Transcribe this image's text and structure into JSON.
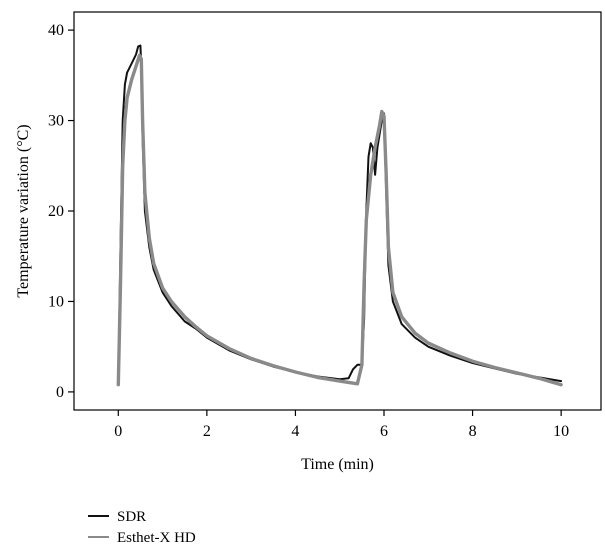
{
  "chart_data": {
    "type": "line",
    "title": "",
    "xlabel": "Time (min)",
    "ylabel": "Temperature variation (°C)",
    "xlim": [
      -1,
      10.9
    ],
    "ylim": [
      -2,
      42
    ],
    "xticks": [
      0,
      2,
      4,
      6,
      8,
      10
    ],
    "yticks": [
      0,
      10,
      20,
      30,
      40
    ],
    "grid": false,
    "legend_position": "bottom-left",
    "series": [
      {
        "name": "SDR",
        "color": "#111111",
        "points": [
          [
            0.0,
            1.0
          ],
          [
            0.05,
            16.0
          ],
          [
            0.1,
            30.0
          ],
          [
            0.15,
            34.0
          ],
          [
            0.2,
            35.3
          ],
          [
            0.3,
            36.3
          ],
          [
            0.4,
            37.3
          ],
          [
            0.45,
            38.2
          ],
          [
            0.5,
            38.3
          ],
          [
            0.52,
            36.0
          ],
          [
            0.55,
            28.0
          ],
          [
            0.6,
            20.0
          ],
          [
            0.7,
            16.0
          ],
          [
            0.8,
            13.5
          ],
          [
            1.0,
            11.0
          ],
          [
            1.2,
            9.5
          ],
          [
            1.5,
            7.8
          ],
          [
            1.75,
            7.0
          ],
          [
            2.0,
            6.0
          ],
          [
            2.5,
            4.6
          ],
          [
            3.0,
            3.6
          ],
          [
            3.5,
            2.8
          ],
          [
            4.0,
            2.2
          ],
          [
            4.5,
            1.7
          ],
          [
            5.0,
            1.4
          ],
          [
            5.2,
            1.5
          ],
          [
            5.3,
            2.5
          ],
          [
            5.4,
            3.0
          ],
          [
            5.5,
            3.0
          ],
          [
            5.55,
            8.0
          ],
          [
            5.6,
            20.0
          ],
          [
            5.65,
            26.0
          ],
          [
            5.7,
            27.5
          ],
          [
            5.75,
            27.0
          ],
          [
            5.8,
            24.0
          ],
          [
            5.85,
            27.0
          ],
          [
            5.95,
            30.0
          ],
          [
            6.0,
            30.8
          ],
          [
            6.05,
            22.0
          ],
          [
            6.1,
            14.0
          ],
          [
            6.2,
            10.0
          ],
          [
            6.4,
            7.5
          ],
          [
            6.7,
            6.0
          ],
          [
            7.0,
            5.0
          ],
          [
            7.5,
            4.0
          ],
          [
            8.0,
            3.2
          ],
          [
            8.5,
            2.6
          ],
          [
            9.0,
            2.0
          ],
          [
            9.5,
            1.6
          ],
          [
            10.0,
            1.2
          ]
        ]
      },
      {
        "name": "Esthet-X HD",
        "color": "#8a8a8a",
        "points": [
          [
            0.0,
            0.8
          ],
          [
            0.05,
            12.0
          ],
          [
            0.1,
            25.0
          ],
          [
            0.15,
            30.0
          ],
          [
            0.2,
            32.5
          ],
          [
            0.3,
            34.5
          ],
          [
            0.4,
            36.0
          ],
          [
            0.48,
            37.2
          ],
          [
            0.52,
            36.8
          ],
          [
            0.55,
            30.0
          ],
          [
            0.6,
            22.0
          ],
          [
            0.7,
            17.0
          ],
          [
            0.8,
            14.2
          ],
          [
            1.0,
            11.5
          ],
          [
            1.2,
            10.0
          ],
          [
            1.5,
            8.3
          ],
          [
            1.75,
            7.2
          ],
          [
            2.0,
            6.2
          ],
          [
            2.5,
            4.8
          ],
          [
            3.0,
            3.7
          ],
          [
            3.5,
            2.9
          ],
          [
            4.0,
            2.2
          ],
          [
            4.5,
            1.6
          ],
          [
            5.0,
            1.2
          ],
          [
            5.4,
            0.9
          ],
          [
            5.5,
            3.0
          ],
          [
            5.55,
            12.0
          ],
          [
            5.6,
            19.0
          ],
          [
            5.7,
            24.0
          ],
          [
            5.8,
            27.0
          ],
          [
            5.9,
            29.5
          ],
          [
            5.95,
            31.0
          ],
          [
            6.0,
            30.5
          ],
          [
            6.05,
            24.0
          ],
          [
            6.1,
            16.0
          ],
          [
            6.2,
            11.0
          ],
          [
            6.4,
            8.3
          ],
          [
            6.7,
            6.5
          ],
          [
            7.0,
            5.4
          ],
          [
            7.5,
            4.3
          ],
          [
            8.0,
            3.4
          ],
          [
            8.5,
            2.7
          ],
          [
            9.0,
            2.1
          ],
          [
            9.5,
            1.5
          ],
          [
            10.0,
            0.8
          ]
        ]
      }
    ]
  }
}
